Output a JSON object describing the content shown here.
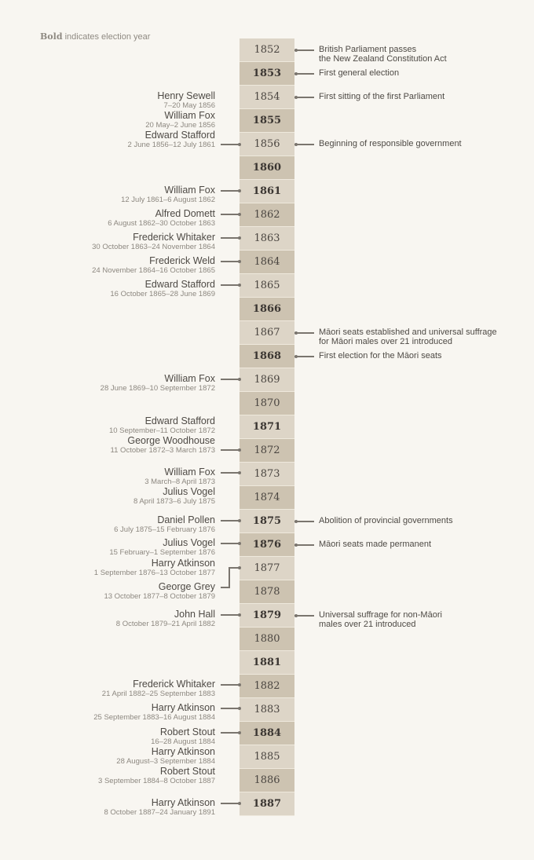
{
  "legend": {
    "bold": "Bold",
    "text": " indicates election year"
  },
  "years": [
    {
      "year": "1852",
      "election": false
    },
    {
      "year": "1853",
      "election": true
    },
    {
      "year": "1854",
      "election": false
    },
    {
      "year": "1855",
      "election": true
    },
    {
      "year": "1856",
      "election": false
    },
    {
      "year": "1860",
      "election": true
    },
    {
      "year": "1861",
      "election": true
    },
    {
      "year": "1862",
      "election": false
    },
    {
      "year": "1863",
      "election": false
    },
    {
      "year": "1864",
      "election": false
    },
    {
      "year": "1865",
      "election": false
    },
    {
      "year": "1866",
      "election": true
    },
    {
      "year": "1867",
      "election": false
    },
    {
      "year": "1868",
      "election": true
    },
    {
      "year": "1869",
      "election": false
    },
    {
      "year": "1870",
      "election": false
    },
    {
      "year": "1871",
      "election": true
    },
    {
      "year": "1872",
      "election": false
    },
    {
      "year": "1873",
      "election": false
    },
    {
      "year": "1874",
      "election": false
    },
    {
      "year": "1875",
      "election": true
    },
    {
      "year": "1876",
      "election": true
    },
    {
      "year": "1877",
      "election": false
    },
    {
      "year": "1878",
      "election": false
    },
    {
      "year": "1879",
      "election": true
    },
    {
      "year": "1880",
      "election": false
    },
    {
      "year": "1881",
      "election": true
    },
    {
      "year": "1882",
      "election": false
    },
    {
      "year": "1883",
      "election": false
    },
    {
      "year": "1884",
      "election": true
    },
    {
      "year": "1885",
      "election": false
    },
    {
      "year": "1886",
      "election": false
    },
    {
      "year": "1887",
      "election": true
    }
  ],
  "premiers": [
    {
      "name": "Henry Sewell",
      "dates": "7–20 May 1856"
    },
    {
      "name": "William Fox",
      "dates": "20 May–2 June 1856"
    },
    {
      "name": "Edward Stafford",
      "dates": "2 June 1856–12 July 1861"
    },
    {
      "name": "William Fox",
      "dates": "12 July 1861–6 August 1862"
    },
    {
      "name": "Alfred Domett",
      "dates": "6 August 1862–30 October 1863"
    },
    {
      "name": "Frederick Whitaker",
      "dates": "30 October 1863–24 November 1864"
    },
    {
      "name": "Frederick Weld",
      "dates": "24 November 1864–16 October 1865"
    },
    {
      "name": "Edward Stafford",
      "dates": "16 October 1865–28 June 1869"
    },
    {
      "name": "William Fox",
      "dates": "28 June 1869–10 September 1872"
    },
    {
      "name": "Edward Stafford",
      "dates": "10 September–11 October 1872"
    },
    {
      "name": "George Woodhouse",
      "dates": "11 October 1872–3 March 1873"
    },
    {
      "name": "William Fox",
      "dates": "3 March–8 April 1873"
    },
    {
      "name": "Julius Vogel",
      "dates": "8 April 1873–6 July 1875"
    },
    {
      "name": "Daniel Pollen",
      "dates": "6 July 1875–15 February 1876"
    },
    {
      "name": "Julius Vogel",
      "dates": "15 February–1 September 1876"
    },
    {
      "name": "Harry Atkinson",
      "dates": "1 September 1876–13 October 1877"
    },
    {
      "name": "George Grey",
      "dates": "13 October 1877–8 October 1879"
    },
    {
      "name": "John Hall",
      "dates": "8 October 1879–21 April 1882"
    },
    {
      "name": "Frederick Whitaker",
      "dates": "21 April 1882–25 September 1883"
    },
    {
      "name": "Harry Atkinson",
      "dates": "25 September 1883–16 August 1884"
    },
    {
      "name": "Robert Stout",
      "dates": "16–28 August 1884"
    },
    {
      "name": "Harry Atkinson",
      "dates": "28 August–3 September 1884"
    },
    {
      "name": "Robert Stout",
      "dates": "3 September 1884–8 October 1887"
    },
    {
      "name": "Harry Atkinson",
      "dates": "8 October 1887–24 January 1891"
    }
  ],
  "events": [
    {
      "year": "1852",
      "lines": [
        "British Parliament passes",
        "the New Zealand Constitution Act"
      ]
    },
    {
      "year": "1853",
      "lines": [
        "First general election"
      ]
    },
    {
      "year": "1854",
      "lines": [
        "First sitting of the first Parliament"
      ]
    },
    {
      "year": "1856",
      "lines": [
        "Beginning of responsible government"
      ]
    },
    {
      "year": "1867",
      "lines": [
        "Māori seats established and universal suffrage",
        "for Māori males over 21 introduced"
      ]
    },
    {
      "year": "1868",
      "lines": [
        "First election for the Māori seats"
      ]
    },
    {
      "year": "1875",
      "lines": [
        "Abolition of provincial governments"
      ]
    },
    {
      "year": "1876",
      "lines": [
        "Māori seats made permanent"
      ]
    },
    {
      "year": "1879",
      "lines": [
        "Universal suffrage for non-Māori",
        "males over 21 introduced"
      ]
    }
  ]
}
